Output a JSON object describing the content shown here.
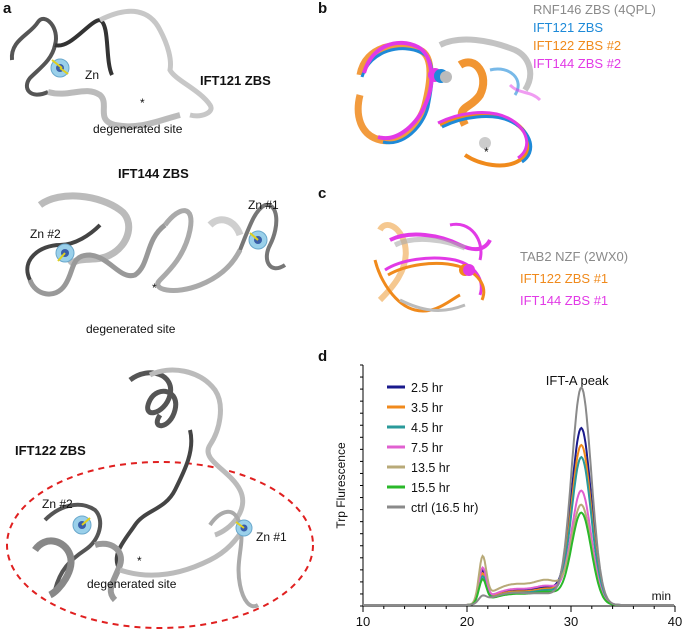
{
  "panels": {
    "a": {
      "letter": "a",
      "ift121": {
        "title": "IFT121 ZBS",
        "zn": "Zn",
        "star": "*",
        "site": "degenerated site"
      },
      "ift144": {
        "title": "IFT144 ZBS",
        "zn1": "Zn #1",
        "zn2": "Zn #2",
        "star": "*",
        "site": "degenerated site"
      },
      "ift122": {
        "title": "IFT122 ZBS",
        "zn1": "Zn #1",
        "zn2": "Zn #2",
        "star": "*",
        "site": "degenerated site"
      }
    },
    "b": {
      "letter": "b",
      "star": "*",
      "legend": [
        "RNF146 ZBS (4QPL)",
        "IFT121 ZBS",
        "IFT122 ZBS #2",
        "IFT144 ZBS #2"
      ]
    },
    "c": {
      "letter": "c",
      "legend": [
        "TAB2 NZF (2WX0)",
        "IFT122 ZBS #1",
        "IFT144 ZBS #1"
      ]
    },
    "d": {
      "letter": "d"
    }
  },
  "colors": {
    "grey": "#8a8a8a",
    "blue": "#1e8ad8",
    "orange": "#f08a1c",
    "magenta": "#e23ae6",
    "red_dash": "#e02020"
  },
  "chart_data": {
    "type": "line",
    "title": "",
    "xlabel": "min",
    "ylabel": "Trp Flurescence",
    "xlim": [
      10,
      40
    ],
    "xticks": [
      10,
      20,
      30,
      40
    ],
    "annotation": "IFT-A peak",
    "legend_position": "top-left",
    "series": [
      {
        "name": "2.5 hr",
        "color": "#1a1a8c",
        "peak_main": 0.73,
        "peak_small": 0.12
      },
      {
        "name": "3.5 hr",
        "color": "#f08a1c",
        "peak_main": 0.66,
        "peak_small": 0.11
      },
      {
        "name": "4.5 hr",
        "color": "#2a9a9a",
        "peak_main": 0.61,
        "peak_small": 0.1
      },
      {
        "name": "7.5 hr",
        "color": "#e060d0",
        "peak_main": 0.47,
        "peak_small": 0.13
      },
      {
        "name": "13.5 hr",
        "color": "#b8aa78",
        "peak_main": 0.41,
        "peak_small": 0.17
      },
      {
        "name": "15.5 hr",
        "color": "#2ab82a",
        "peak_main": 0.38,
        "peak_small": 0.09
      },
      {
        "name": "ctrl (16.5 hr)",
        "color": "#8a8a8a",
        "peak_main": 0.9,
        "peak_small": 0.02
      }
    ]
  }
}
